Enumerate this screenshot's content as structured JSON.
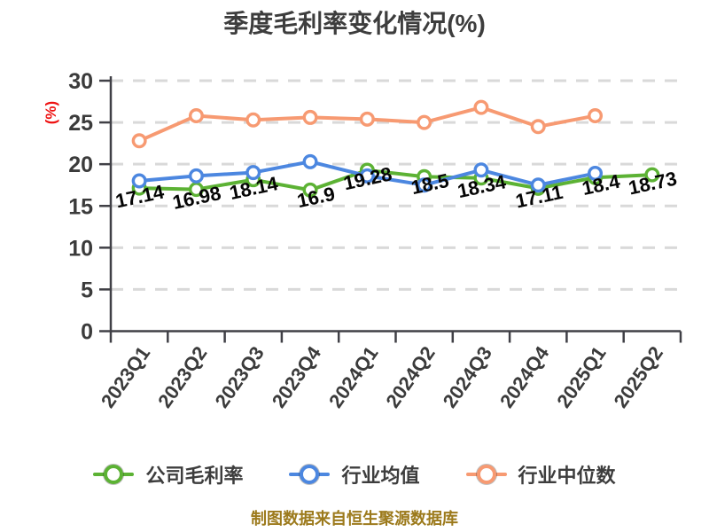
{
  "title": "季度毛利率变化情况(%)",
  "footer_note": "制图数据来自恒生聚源数据库",
  "axis": {
    "y_label": "(%)",
    "y_label_color": "#ee1111",
    "y_ticks": [
      0,
      5,
      10,
      15,
      20,
      25,
      30
    ]
  },
  "chart_data": {
    "type": "line",
    "title": "季度毛利率变化情况(%)",
    "ylabel": "(%)",
    "ylim": [
      0,
      30
    ],
    "yticks": [
      0,
      5,
      10,
      15,
      20,
      25,
      30
    ],
    "grid": "horizontal-dashed",
    "legend_position": "bottom",
    "categories": [
      "2023Q1",
      "2023Q2",
      "2023Q3",
      "2023Q4",
      "2024Q1",
      "2024Q2",
      "2024Q3",
      "2024Q4",
      "2025Q1",
      "2025Q2"
    ],
    "series": [
      {
        "name": "公司毛利率",
        "color": "#5cb234",
        "show_labels": true,
        "values": [
          17.14,
          16.98,
          18.14,
          16.9,
          19.28,
          18.5,
          18.34,
          17.11,
          18.4,
          18.73
        ]
      },
      {
        "name": "行业均值",
        "color": "#4c87e0",
        "show_labels": false,
        "values": [
          18.0,
          18.6,
          19.0,
          20.3,
          18.6,
          17.5,
          19.3,
          17.5,
          18.9
        ]
      },
      {
        "name": "行业中位数",
        "color": "#f79a72",
        "show_labels": false,
        "values": [
          22.8,
          25.8,
          25.3,
          25.6,
          25.4,
          25.0,
          26.8,
          24.5,
          25.8
        ]
      }
    ]
  }
}
